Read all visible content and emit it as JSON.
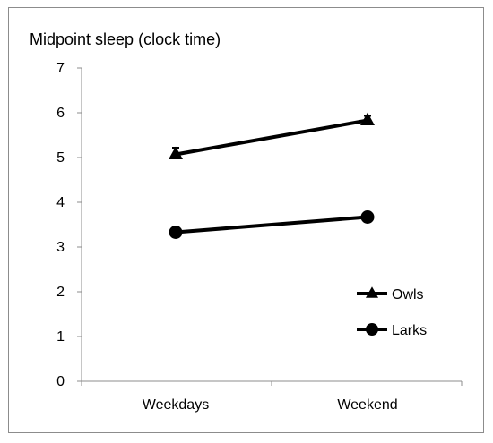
{
  "chart_data": {
    "type": "line",
    "title": "Midpoint sleep (clock time)",
    "xlabel": "",
    "ylabel": "",
    "categories": [
      "Weekdays",
      "Weekend"
    ],
    "ylim": [
      0,
      7
    ],
    "yticks": [
      0,
      1,
      2,
      3,
      4,
      5,
      6,
      7
    ],
    "grid": false,
    "legend_position": "bottom-right",
    "series": [
      {
        "name": "Owls",
        "marker": "triangle",
        "values": [
          5.07,
          5.83
        ],
        "error": [
          0.15,
          0.1
        ],
        "color": "#000000"
      },
      {
        "name": "Larks",
        "marker": "circle",
        "values": [
          3.33,
          3.67
        ],
        "error": [
          0.05,
          0.05
        ],
        "color": "#000000"
      }
    ]
  }
}
